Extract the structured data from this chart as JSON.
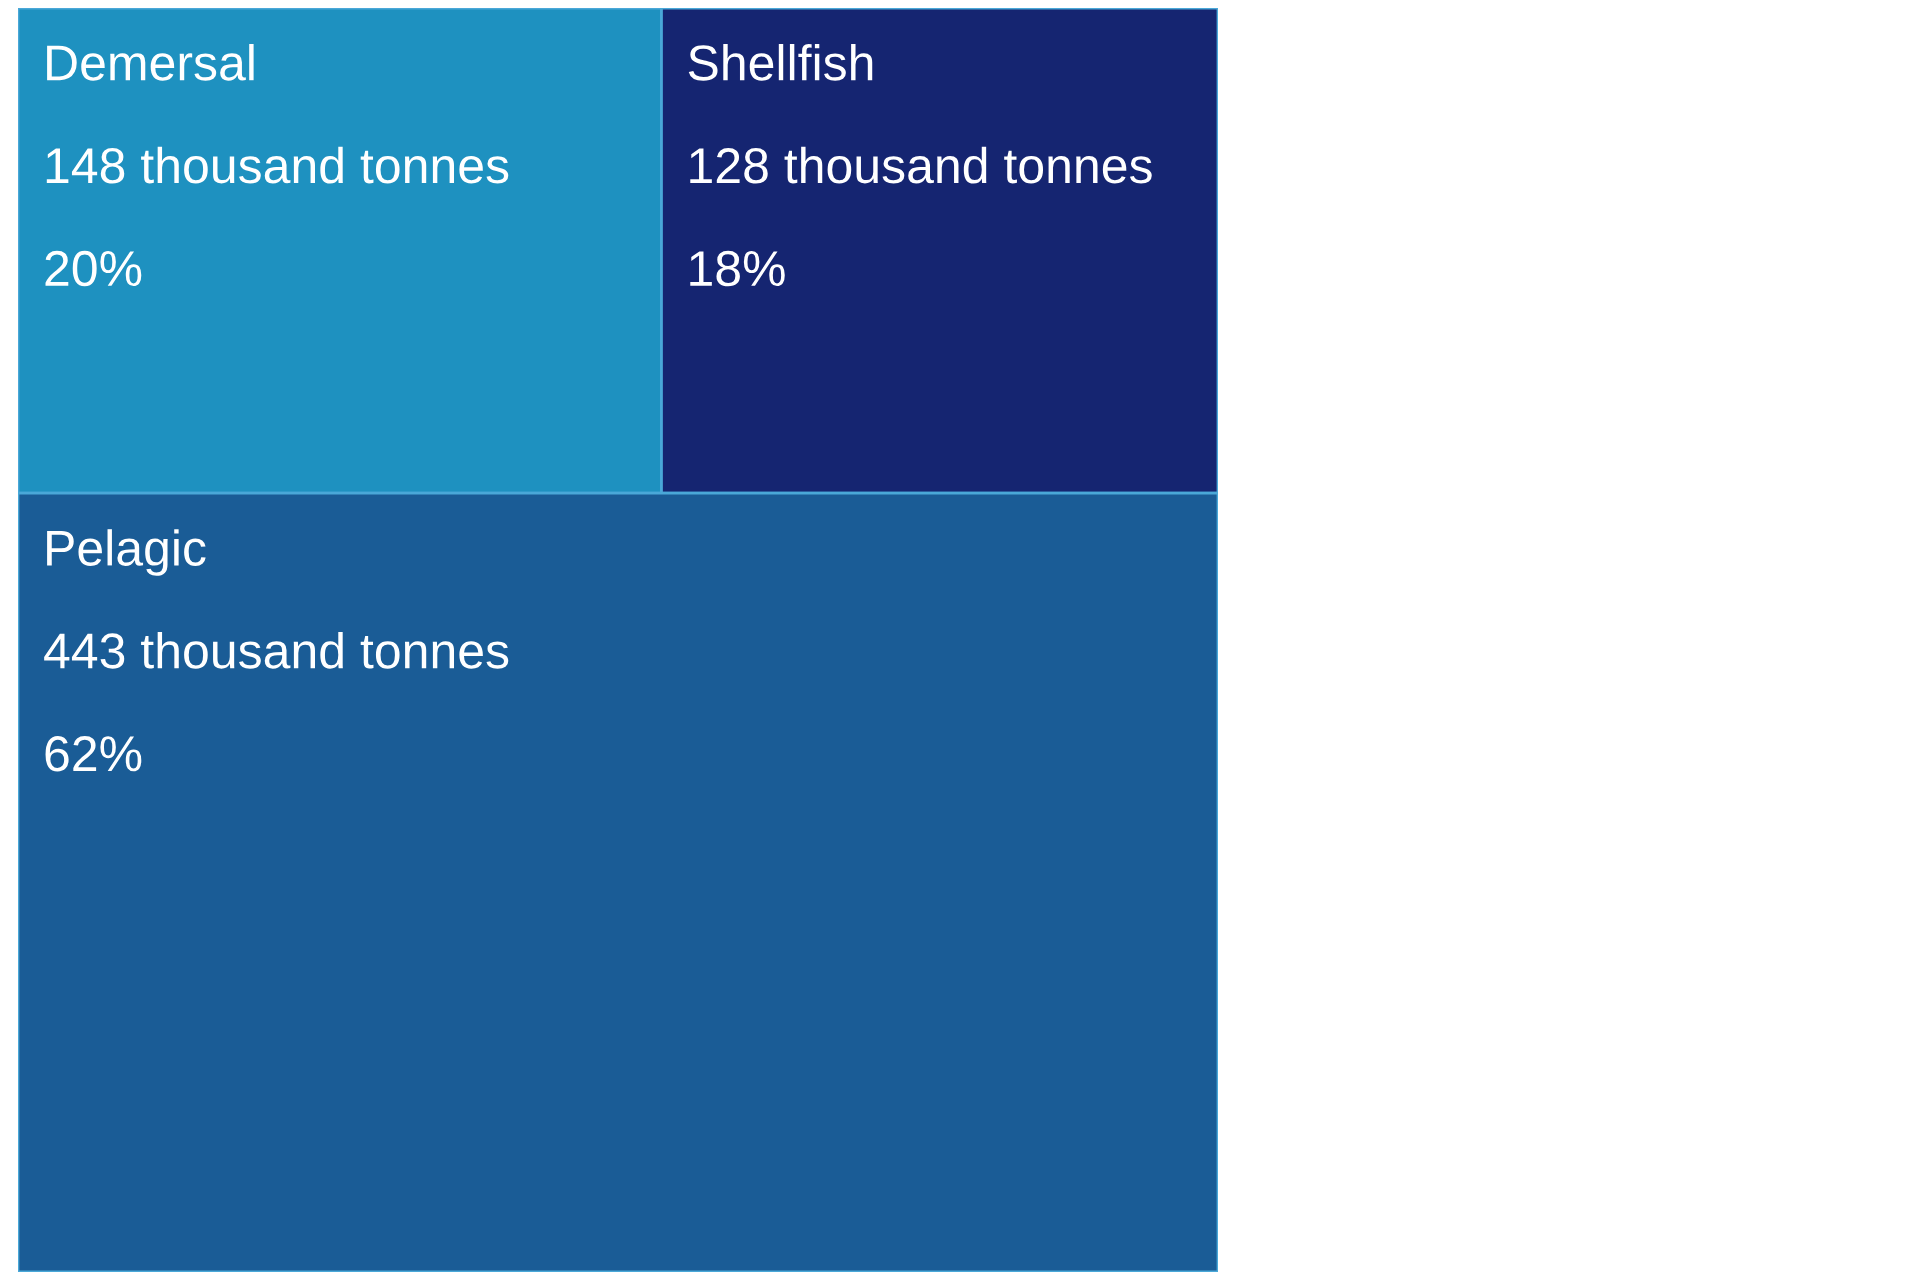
{
  "chart_data": {
    "type": "other",
    "categories": [
      "Demersal",
      "Shellfish",
      "Pelagic"
    ],
    "values": [
      148,
      128,
      443
    ],
    "value_labels": [
      "148 thousand tonnes",
      "128 thousand tonnes",
      "443 thousand tonnes"
    ],
    "annotations": [
      "20%",
      "18%",
      "62%"
    ],
    "colors": [
      "#1e91c0",
      "#152571",
      "#1a5c96"
    ]
  }
}
